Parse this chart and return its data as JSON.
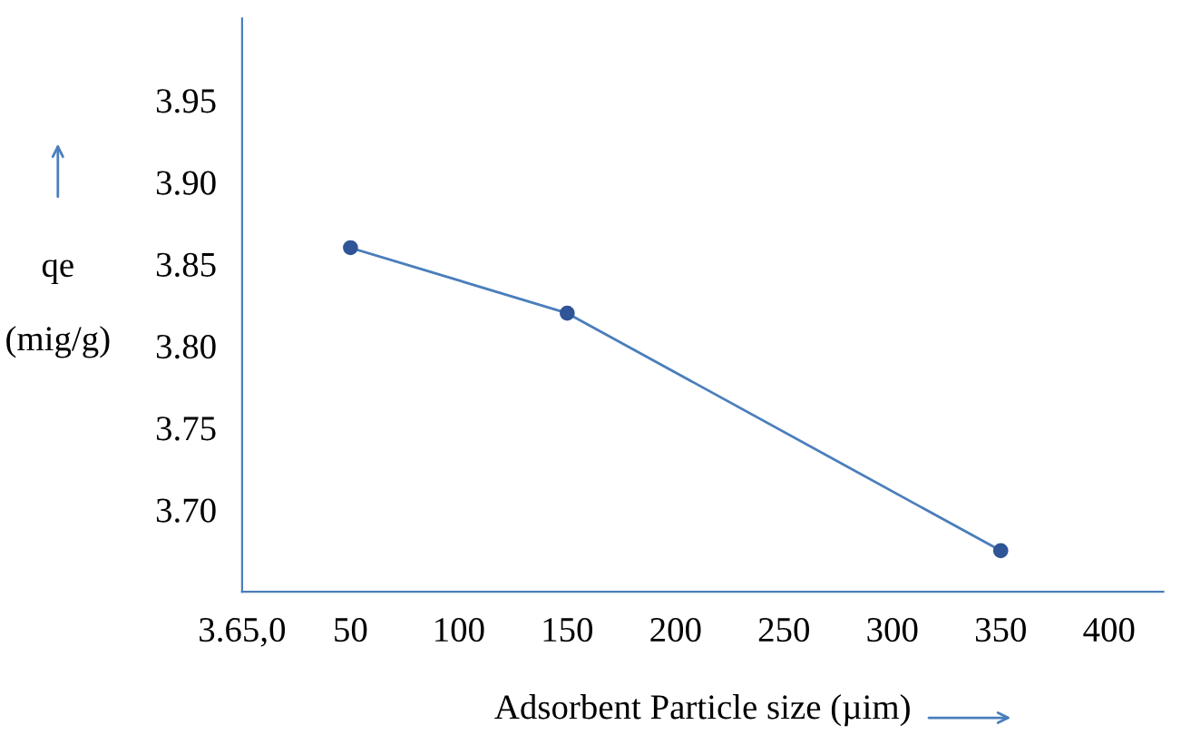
{
  "chart_data": {
    "type": "line",
    "xlabel": "Adsorbent Particle size (µim)",
    "ylabel": "qe\n\n(mig/g)",
    "x": [
      50,
      150,
      350
    ],
    "series": [
      {
        "color": "#4a7ebb",
        "values": [
          3.86,
          3.82,
          3.675
        ]
      }
    ],
    "xlim": [
      0,
      425
    ],
    "xticks": [
      {
        "value": 0,
        "label": "3.65,0"
      },
      50,
      100,
      150,
      200,
      250,
      300,
      350,
      400
    ],
    "ylim": [
      3.65,
      4.0
    ],
    "yticks": [
      {
        "value": 3.7,
        "label": "3.70"
      },
      3.75,
      {
        "value": 3.8,
        "label": "3.80"
      },
      3.85,
      {
        "value": 3.9,
        "label": "3.90"
      },
      3.95
    ],
    "grid": false,
    "legend": false,
    "marker": "circle",
    "line_style": "solid"
  }
}
